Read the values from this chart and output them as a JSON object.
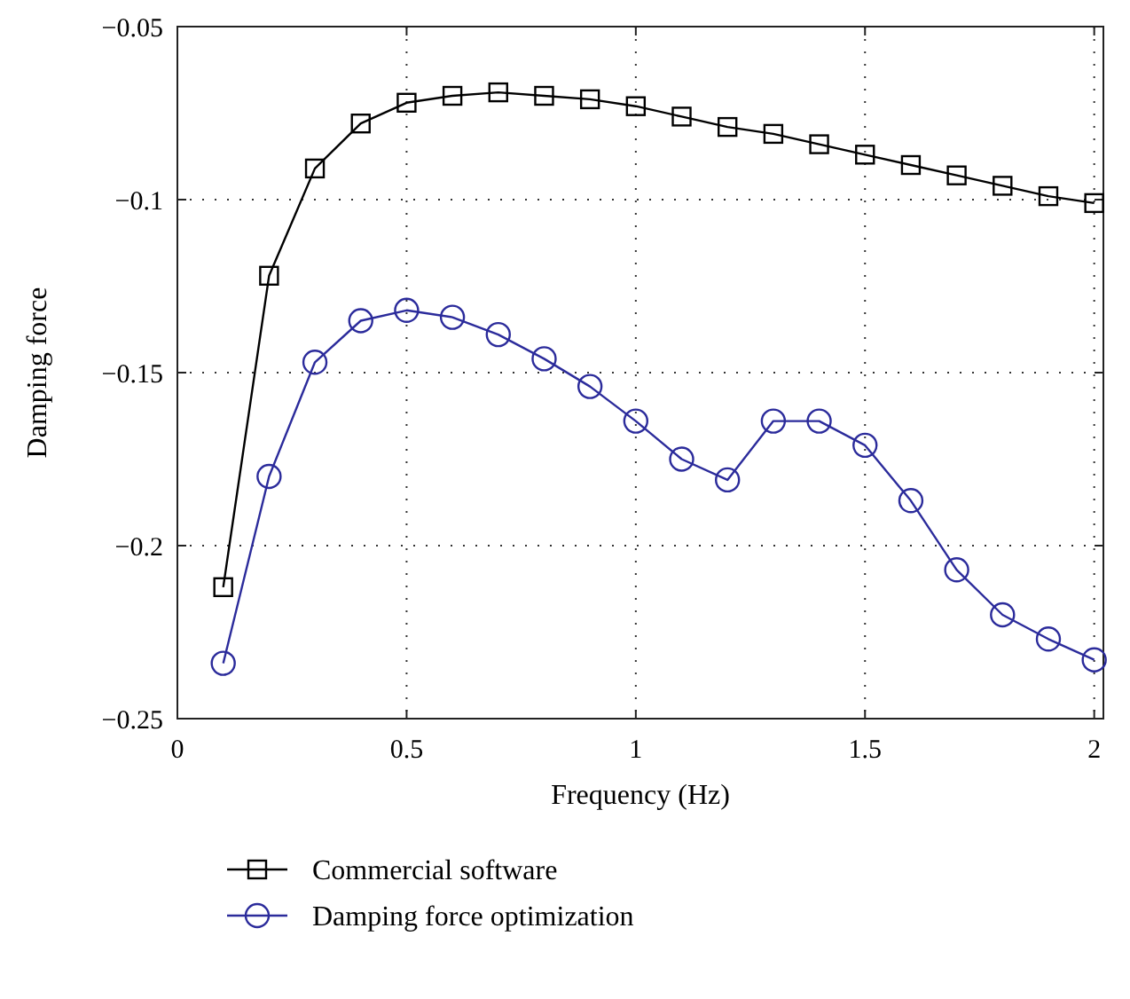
{
  "chart_data": {
    "type": "line",
    "xlabel": "Frequency (Hz)",
    "ylabel": "Damping force",
    "x": [
      0.1,
      0.2,
      0.3,
      0.4,
      0.5,
      0.6,
      0.7,
      0.8,
      0.9,
      1.0,
      1.1,
      1.2,
      1.3,
      1.4,
      1.5,
      1.6,
      1.7,
      1.8,
      1.9,
      2.0
    ],
    "series": [
      {
        "name": "Commercial software",
        "color": "#000000",
        "marker": "square",
        "values": [
          -0.212,
          -0.122,
          -0.091,
          -0.078,
          -0.072,
          -0.07,
          -0.069,
          -0.07,
          -0.071,
          -0.073,
          -0.076,
          -0.079,
          -0.081,
          -0.084,
          -0.087,
          -0.09,
          -0.093,
          -0.096,
          -0.099,
          -0.101
        ]
      },
      {
        "name": "Damping force optimization",
        "color": "#2b2b9b",
        "marker": "circle",
        "values": [
          -0.234,
          -0.18,
          -0.147,
          -0.135,
          -0.132,
          -0.134,
          -0.139,
          -0.146,
          -0.154,
          -0.164,
          -0.175,
          -0.181,
          -0.164,
          -0.164,
          -0.171,
          -0.187,
          -0.207,
          -0.22,
          -0.227,
          -0.233
        ]
      }
    ],
    "xlim": [
      0,
      2.02
    ],
    "xticks": [
      0,
      0.5,
      1,
      1.5,
      2
    ],
    "ylim": [
      -0.25,
      -0.05
    ],
    "yticks": [
      {
        "value": -0.25,
        "label": "−0.25"
      },
      {
        "value": -0.2,
        "label": "−0.2"
      },
      {
        "value": -0.15,
        "label": "−0.15"
      },
      {
        "value": -0.1,
        "label": "−0.1"
      },
      {
        "value": -0.05,
        "label": "−0.05"
      }
    ],
    "grid": true,
    "legend": "bottom",
    "line_style": "solid"
  }
}
